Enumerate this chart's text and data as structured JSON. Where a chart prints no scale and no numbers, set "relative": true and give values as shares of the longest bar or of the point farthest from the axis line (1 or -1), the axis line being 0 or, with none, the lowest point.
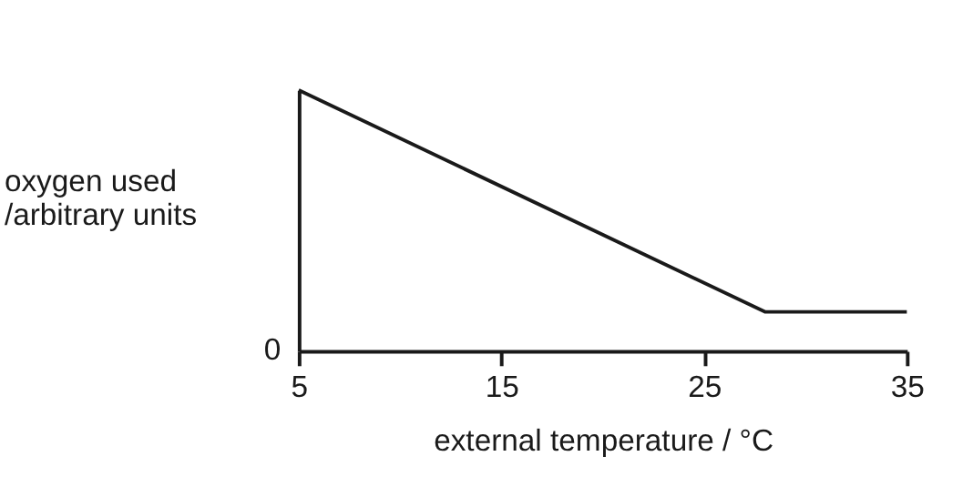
{
  "chart_data": {
    "type": "line",
    "relative": true,
    "x": [
      5,
      28,
      35
    ],
    "series": [
      {
        "color": "#1a1a1a",
        "values": [
          1,
          0.15,
          0.15
        ]
      }
    ],
    "xlim": [
      5,
      35
    ],
    "xticks": [
      5,
      15,
      25,
      35
    ],
    "annotations": [
      "0"
    ],
    "xlabel": "external temperature / °C",
    "ylabel": "oxygen used\n/arbitrary units",
    "grid": false,
    "legend": false,
    "marker": "none",
    "line_style": "solid"
  }
}
